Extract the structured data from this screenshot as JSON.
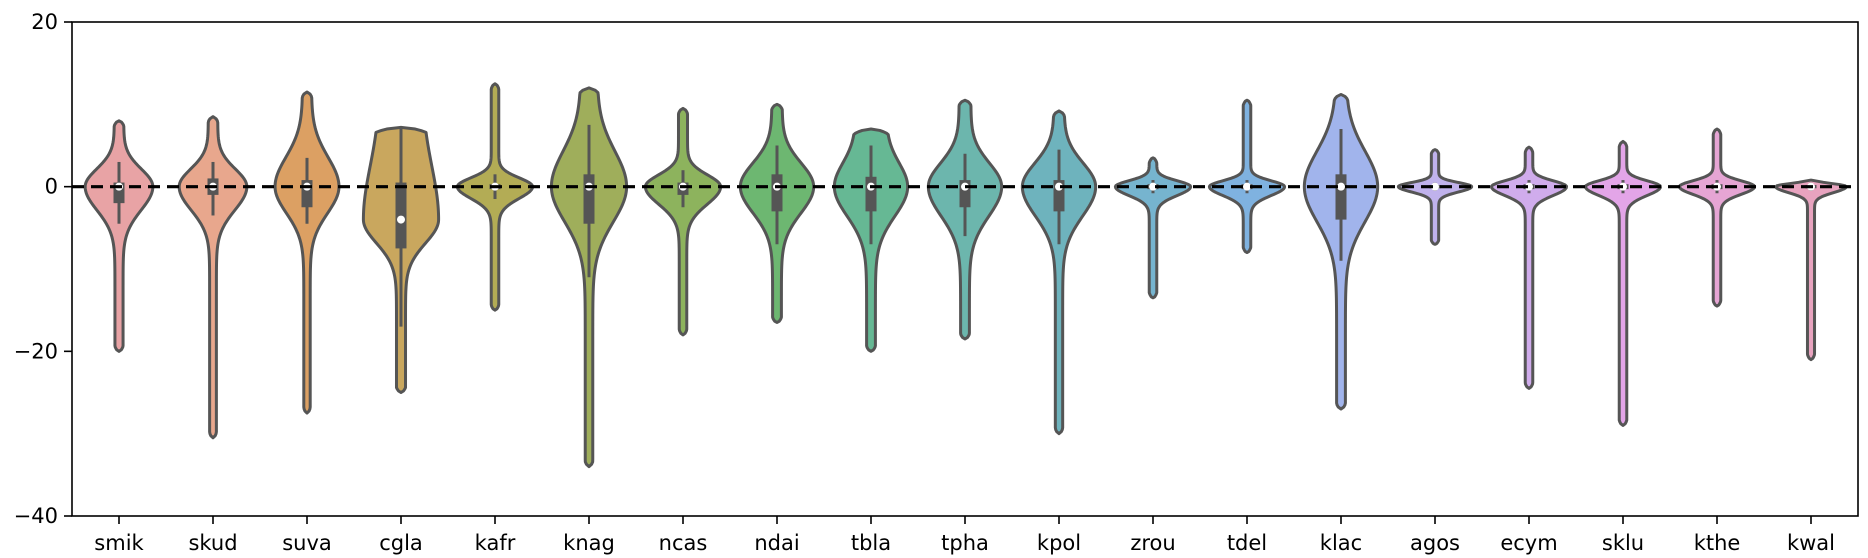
{
  "chart_data": {
    "type": "violin",
    "categories": [
      "smik",
      "skud",
      "suva",
      "cgla",
      "kafr",
      "knag",
      "ncas",
      "ndai",
      "tbla",
      "tpha",
      "kpol",
      "zrou",
      "tdel",
      "klac",
      "agos",
      "ecym",
      "sklu",
      "kthe",
      "kwal"
    ],
    "ylim": [
      -40,
      20
    ],
    "yticks": [
      20,
      0,
      -20,
      -40
    ],
    "reference_line": 0,
    "colors": [
      "#e8a3a5",
      "#e8a78d",
      "#dca063",
      "#c9a75e",
      "#b3ac55",
      "#9fae5b",
      "#8db35d",
      "#6db771",
      "#66b894",
      "#6cb6ad",
      "#6eb3bd",
      "#76b4cf",
      "#7fb2e0",
      "#a1b4ec",
      "#c0b2ec",
      "#d0acec",
      "#e3a5e8",
      "#e6a5d4",
      "#e8a3bf"
    ],
    "series": [
      {
        "category": "smik",
        "min": -20,
        "max": 8,
        "q1": -2,
        "median": 0,
        "q3": 0.5,
        "whisker_low": -4.5,
        "whisker_high": 3,
        "body_halfwidth": 0.72,
        "body_top": 3,
        "body_bottom": -4,
        "neck_top": 0.14,
        "neck_bottom": 0.12
      },
      {
        "category": "skud",
        "min": -30.5,
        "max": 8.5,
        "q1": -1,
        "median": 0,
        "q3": 1,
        "whisker_low": -3.5,
        "whisker_high": 3,
        "body_halfwidth": 0.72,
        "body_top": 3,
        "body_bottom": -4,
        "neck_top": 0.14,
        "neck_bottom": 0.1
      },
      {
        "category": "suva",
        "min": -27.5,
        "max": 11.5,
        "q1": -2.5,
        "median": 0,
        "q3": 0.8,
        "whisker_low": -4.5,
        "whisker_high": 3.5,
        "body_halfwidth": 0.68,
        "body_top": 5,
        "body_bottom": -4.5,
        "neck_top": 0.14,
        "neck_bottom": 0.1
      },
      {
        "category": "cgla",
        "min": -25,
        "max": 7.2,
        "q1": -7.5,
        "median": -4,
        "q3": 0.5,
        "whisker_low": -17,
        "whisker_high": 7,
        "body_halfwidth": 0.8,
        "body_top": 5,
        "body_bottom": -8,
        "neck_top": 0.55,
        "neck_bottom": 0.12
      },
      {
        "category": "kafr",
        "min": -15,
        "max": 12.5,
        "q1": -0.3,
        "median": 0,
        "q3": 0.3,
        "whisker_low": -1.5,
        "whisker_high": 1.5,
        "body_halfwidth": 0.8,
        "body_top": 1.5,
        "body_bottom": -2,
        "neck_top": 0.1,
        "neck_bottom": 0.1
      },
      {
        "category": "knag",
        "min": -34,
        "max": 12,
        "q1": -4.5,
        "median": 0,
        "q3": 1.5,
        "whisker_low": -11,
        "whisker_high": 7.5,
        "body_halfwidth": 0.8,
        "body_top": 6,
        "body_bottom": -6,
        "neck_top": 0.22,
        "neck_bottom": 0.1
      },
      {
        "category": "ncas",
        "min": -18,
        "max": 9.5,
        "q1": -1,
        "median": 0,
        "q3": 0.5,
        "whisker_low": -2.5,
        "whisker_high": 2,
        "body_halfwidth": 0.8,
        "body_top": 2,
        "body_bottom": -3,
        "neck_top": 0.12,
        "neck_bottom": 0.1
      },
      {
        "category": "ndai",
        "min": -16.5,
        "max": 10,
        "q1": -3,
        "median": 0,
        "q3": 1.5,
        "whisker_low": -7,
        "whisker_high": 5,
        "body_halfwidth": 0.78,
        "body_top": 4,
        "body_bottom": -4.5,
        "neck_top": 0.14,
        "neck_bottom": 0.12
      },
      {
        "category": "tbla",
        "min": -20,
        "max": 7,
        "q1": -3,
        "median": 0,
        "q3": 1.2,
        "whisker_low": -7,
        "whisker_high": 5,
        "body_halfwidth": 0.78,
        "body_top": 4,
        "body_bottom": -5,
        "neck_top": 0.42,
        "neck_bottom": 0.12
      },
      {
        "category": "tpha",
        "min": -18.5,
        "max": 10.5,
        "q1": -2.5,
        "median": 0,
        "q3": 0.8,
        "whisker_low": -6,
        "whisker_high": 4,
        "body_halfwidth": 0.78,
        "body_top": 4,
        "body_bottom": -5,
        "neck_top": 0.16,
        "neck_bottom": 0.12
      },
      {
        "category": "kpol",
        "min": -30,
        "max": 9.2,
        "q1": -3,
        "median": 0,
        "q3": 0.8,
        "whisker_low": -7,
        "whisker_high": 4.5,
        "body_halfwidth": 0.78,
        "body_top": 4,
        "body_bottom": -5,
        "neck_top": 0.14,
        "neck_bottom": 0.1
      },
      {
        "category": "zrou",
        "min": -13.5,
        "max": 3.5,
        "q1": -0.3,
        "median": 0,
        "q3": 0.3,
        "whisker_low": -0.8,
        "whisker_high": 0.8,
        "body_halfwidth": 0.8,
        "body_top": 1,
        "body_bottom": -1.5,
        "neck_top": 0.1,
        "neck_bottom": 0.1
      },
      {
        "category": "tdel",
        "min": -8,
        "max": 10.5,
        "q1": -0.3,
        "median": 0,
        "q3": 0.3,
        "whisker_low": -0.8,
        "whisker_high": 0.8,
        "body_halfwidth": 0.8,
        "body_top": 1,
        "body_bottom": -1.5,
        "neck_top": 0.1,
        "neck_bottom": 0.1
      },
      {
        "category": "klac",
        "min": -27,
        "max": 11.2,
        "q1": -4,
        "median": 0,
        "q3": 1.5,
        "whisker_low": -9,
        "whisker_high": 7,
        "body_halfwidth": 0.78,
        "body_top": 6,
        "body_bottom": -6,
        "neck_top": 0.14,
        "neck_bottom": 0.12
      },
      {
        "category": "agos",
        "min": -7,
        "max": 4.5,
        "q1": -0.2,
        "median": 0,
        "q3": 0.2,
        "whisker_low": -0.5,
        "whisker_high": 0.5,
        "body_halfwidth": 0.78,
        "body_top": 0.7,
        "body_bottom": -0.9,
        "neck_top": 0.1,
        "neck_bottom": 0.1
      },
      {
        "category": "ecym",
        "min": -24.5,
        "max": 4.8,
        "q1": -0.3,
        "median": 0,
        "q3": 0.3,
        "whisker_low": -0.8,
        "whisker_high": 0.8,
        "body_halfwidth": 0.8,
        "body_top": 1,
        "body_bottom": -1.5,
        "neck_top": 0.1,
        "neck_bottom": 0.1
      },
      {
        "category": "sklu",
        "min": -29,
        "max": 5.5,
        "q1": -0.3,
        "median": 0,
        "q3": 0.3,
        "whisker_low": -0.8,
        "whisker_high": 0.8,
        "body_halfwidth": 0.8,
        "body_top": 1,
        "body_bottom": -1.5,
        "neck_top": 0.1,
        "neck_bottom": 0.1
      },
      {
        "category": "kthe",
        "min": -14.5,
        "max": 7,
        "q1": -0.3,
        "median": 0,
        "q3": 0.3,
        "whisker_low": -0.8,
        "whisker_high": 0.8,
        "body_halfwidth": 0.8,
        "body_top": 1,
        "body_bottom": -1.3,
        "neck_top": 0.1,
        "neck_bottom": 0.1
      },
      {
        "category": "kwal",
        "min": -21,
        "max": 0.8,
        "q1": -0.2,
        "median": 0,
        "q3": 0.2,
        "whisker_low": -0.5,
        "whisker_high": 0.5,
        "body_halfwidth": 0.75,
        "body_top": 0.6,
        "body_bottom": -1,
        "neck_top": 0.1,
        "neck_bottom": 0.1
      }
    ]
  }
}
